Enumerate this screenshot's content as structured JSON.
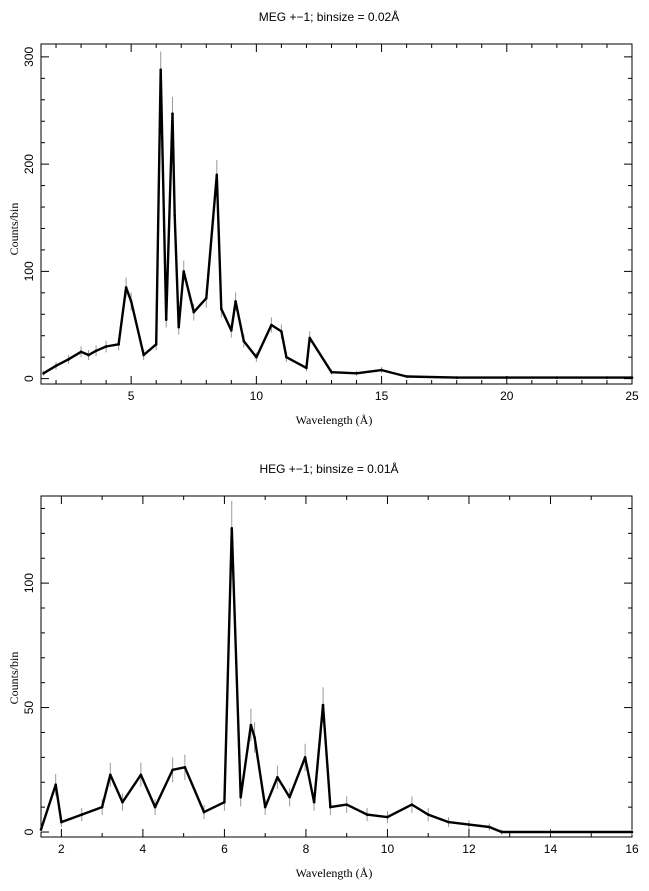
{
  "chart_data": [
    {
      "type": "line",
      "title": "MEG +−1; binsize = 0.02Å",
      "xlabel": "Wavelength (Å)",
      "ylabel": "Counts/bin",
      "xlim": [
        1.4,
        25
      ],
      "ylim": [
        -5,
        312
      ],
      "xticks": [
        5,
        10,
        15,
        20,
        25
      ],
      "yticks": [
        0,
        100,
        200,
        300
      ],
      "grid": false,
      "series": [
        {
          "x": [
            1.5,
            2.0,
            2.5,
            3.0,
            3.3,
            3.6,
            4.0,
            4.5,
            4.8,
            5.0,
            5.5,
            6.0,
            6.18,
            6.4,
            6.65,
            6.74,
            6.9,
            7.1,
            7.5,
            8.0,
            8.42,
            8.6,
            9.0,
            9.17,
            9.5,
            10.0,
            10.6,
            11.0,
            11.2,
            12.0,
            12.13,
            13.0,
            14.0,
            15.0,
            16.0,
            18.0,
            20.0,
            22.0,
            24.0,
            25.0
          ],
          "y": [
            5,
            12,
            18,
            25,
            22,
            26,
            30,
            32,
            85,
            72,
            22,
            32,
            288,
            55,
            247,
            152,
            48,
            100,
            62,
            75,
            190,
            65,
            45,
            72,
            35,
            20,
            50,
            44,
            20,
            10,
            38,
            6,
            5,
            8,
            2,
            1,
            1,
            1,
            1,
            1
          ]
        }
      ]
    },
    {
      "type": "line",
      "title": "HEG +−1; binsize = 0.01Å",
      "xlabel": "Wavelength (Å)",
      "ylabel": "Counts/bin",
      "xlim": [
        1.5,
        16
      ],
      "ylim": [
        -2,
        135
      ],
      "xticks": [
        2,
        4,
        6,
        8,
        10,
        12,
        14,
        16
      ],
      "yticks": [
        0,
        50,
        100
      ],
      "grid": false,
      "series": [
        {
          "x": [
            1.5,
            1.86,
            2.0,
            2.5,
            3.0,
            3.2,
            3.5,
            3.95,
            4.3,
            4.73,
            5.03,
            5.5,
            6.0,
            6.18,
            6.4,
            6.65,
            6.74,
            7.0,
            7.3,
            7.6,
            7.98,
            8.2,
            8.42,
            8.6,
            9.0,
            9.5,
            10.0,
            10.6,
            11.0,
            11.5,
            12.0,
            12.5,
            12.8,
            14.0,
            16.0
          ],
          "y": [
            1,
            19,
            4,
            7,
            10,
            23,
            12,
            23,
            10,
            25,
            26,
            8,
            12,
            122,
            14,
            43,
            38,
            10,
            22,
            14,
            30,
            12,
            51,
            10,
            11,
            7,
            6,
            11,
            7,
            4,
            3,
            2,
            0,
            0,
            0
          ]
        }
      ]
    }
  ]
}
